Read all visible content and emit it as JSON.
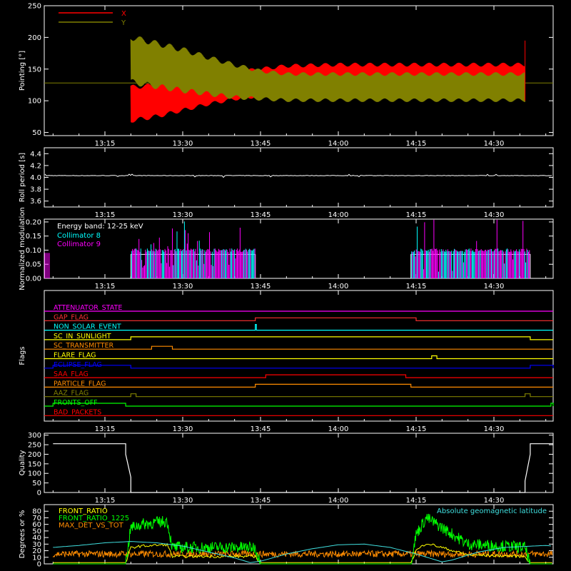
{
  "time_ticks": [
    "13:15",
    "13:30",
    "13:45",
    "14:00",
    "14:15",
    "14:30"
  ],
  "chart_data": [
    {
      "type": "line",
      "ylabel": "Pointing [°]",
      "ylim": [
        45,
        250
      ],
      "y_ticks": [
        50,
        100,
        150,
        200,
        250
      ],
      "legend": {
        "placement": "top-left"
      },
      "series": [
        {
          "name": "X",
          "color": "#ff0000",
          "envelope": [
            {
              "t": "13:20",
              "min": 65,
              "max": 125
            },
            {
              "t": "13:25",
              "min": 72,
              "max": 128
            },
            {
              "t": "13:30",
              "min": 82,
              "max": 133
            },
            {
              "t": "13:35",
              "min": 92,
              "max": 140
            },
            {
              "t": "13:40",
              "min": 100,
              "max": 148
            },
            {
              "t": "13:45",
              "min": 105,
              "max": 153
            },
            {
              "t": "13:50",
              "min": 108,
              "max": 158
            },
            {
              "t": "14:00",
              "min": 110,
              "max": 160
            },
            {
              "t": "14:20",
              "min": 110,
              "max": 160
            },
            {
              "t": "14:36",
              "min": 110,
              "max": 160
            }
          ]
        },
        {
          "name": "Y",
          "color": "#808000",
          "envelope": [
            {
              "t": "13:20",
              "min": 125,
              "max": 205
            },
            {
              "t": "13:25",
              "min": 118,
              "max": 195
            },
            {
              "t": "13:30",
              "min": 112,
              "max": 185
            },
            {
              "t": "13:35",
              "min": 107,
              "max": 172
            },
            {
              "t": "13:40",
              "min": 102,
              "max": 160
            },
            {
              "t": "13:45",
              "min": 100,
              "max": 150
            },
            {
              "t": "13:50",
              "min": 98,
              "max": 145
            },
            {
              "t": "14:00",
              "min": 98,
              "max": 145
            },
            {
              "t": "14:20",
              "min": 98,
              "max": 145
            },
            {
              "t": "14:36",
              "min": 98,
              "max": 145
            }
          ]
        }
      ],
      "baseline": 128
    },
    {
      "type": "line",
      "ylabel": "Roll period [s]",
      "ylim": [
        3.5,
        4.5
      ],
      "y_ticks": [
        3.6,
        3.8,
        4.0,
        4.2,
        4.4
      ],
      "series": [
        {
          "color": "#ffffff",
          "value": 4.03
        }
      ]
    },
    {
      "type": "bar",
      "ylabel": "Normalized modulation",
      "ylim": [
        0,
        0.21
      ],
      "y_ticks": [
        0.0,
        0.05,
        0.1,
        0.15,
        0.2
      ],
      "annotation": "Energy band: 12-25 keV",
      "series": [
        {
          "name": "Collimator 8",
          "color": "#00ffff"
        },
        {
          "name": "Collimator 9",
          "color": "#ff00ff"
        }
      ],
      "active_intervals": [
        [
          "13:20",
          "13:44"
        ],
        [
          "14:14",
          "14:37"
        ]
      ],
      "typical_value": 0.1
    },
    {
      "type": "line",
      "ylabel": "Flags",
      "series": [
        {
          "name": "ATTENUATOR_STATE",
          "color": "#ff00ff",
          "on": []
        },
        {
          "name": "GAP_FLAG",
          "color": "#ff3030",
          "on": [
            [
              "13:44",
              "14:15"
            ]
          ]
        },
        {
          "name": "NON_SOLAR_EVENT",
          "color": "#00ffff",
          "on": [
            [
              "13:44",
              "13:44"
            ]
          ]
        },
        {
          "name": "SC_IN_SUNLIGHT",
          "color": "#ffff00",
          "on": [
            [
              "13:20",
              "14:37"
            ]
          ]
        },
        {
          "name": "SC_TRANSMITTER",
          "color": "#ff8c00",
          "on": [
            [
              "13:24",
              "13:28"
            ]
          ]
        },
        {
          "name": "FLARE_FLAG",
          "color": "#ffff00",
          "on": [
            [
              "14:18",
              "14:19"
            ]
          ]
        },
        {
          "name": "ECLIPSE_FLAG",
          "color": "#0000ff",
          "on": [
            [
              "13:05",
              "13:20"
            ],
            [
              "14:37",
              "14:45"
            ]
          ]
        },
        {
          "name": "SAA_FLAG",
          "color": "#ff0000",
          "on": [
            [
              "13:46",
              "14:13"
            ]
          ]
        },
        {
          "name": "PARTICLE_FLAG",
          "color": "#ff8c00",
          "on": [
            [
              "13:44",
              "14:14"
            ]
          ]
        },
        {
          "name": "AAZ_FLAG",
          "color": "#808000",
          "on": [
            [
              "13:20",
              "13:21"
            ],
            [
              "14:36",
              "14:37"
            ]
          ]
        },
        {
          "name": "FRONTS_OFF",
          "color": "#00ff00",
          "on": [
            [
              "13:05",
              "13:19"
            ],
            [
              "14:41",
              "14:45"
            ]
          ]
        },
        {
          "name": "BAD_PACKETS",
          "color": "#ff0000",
          "on": []
        }
      ]
    },
    {
      "type": "line",
      "ylabel": "Quality",
      "ylim": [
        0,
        310
      ],
      "y_ticks": [
        0,
        50,
        100,
        150,
        200,
        250,
        300
      ],
      "series": [
        {
          "color": "#ffffff",
          "points": [
            [
              "13:05",
              255
            ],
            [
              "13:19",
              255
            ],
            [
              "13:19",
              200
            ],
            [
              "13:20",
              80
            ],
            [
              "13:20",
              0
            ],
            [
              "14:36",
              0
            ],
            [
              "14:36",
              60
            ],
            [
              "14:37",
              200
            ],
            [
              "14:37",
              255
            ],
            [
              "14:45",
              255
            ]
          ]
        }
      ]
    },
    {
      "type": "line",
      "ylabel": "Degrees or %",
      "ylim": [
        0,
        90
      ],
      "y_ticks": [
        0,
        10,
        20,
        30,
        40,
        50,
        60,
        70,
        80
      ],
      "series": [
        {
          "name": "FRONT_RATIO",
          "color": "#ffff00",
          "legend_position": "top-left"
        },
        {
          "name": "FRONT_RATIO_1225",
          "color": "#00ff00",
          "legend_position": "top-left"
        },
        {
          "name": "MAX_DET_VS_TOT",
          "color": "#ff8c00",
          "legend_position": "top-left"
        },
        {
          "name": "Absolute geomagnetic latitude",
          "color": "#40e0e0",
          "legend_position": "top-right"
        }
      ],
      "green_profile": [
        [
          "13:05",
          0
        ],
        [
          "13:19",
          0
        ],
        [
          "13:20",
          55
        ],
        [
          "13:22",
          60
        ],
        [
          "13:27",
          65
        ],
        [
          "13:28",
          25
        ],
        [
          "13:35",
          25
        ],
        [
          "13:44",
          25
        ],
        [
          "13:45",
          0
        ],
        [
          "14:14",
          0
        ],
        [
          "14:15",
          45
        ],
        [
          "14:17",
          70
        ],
        [
          "14:20",
          55
        ],
        [
          "14:25",
          30
        ],
        [
          "14:36",
          25
        ],
        [
          "14:37",
          0
        ],
        [
          "14:45",
          0
        ]
      ],
      "orange_level": 15,
      "geomagnetic_latitude": [
        [
          "13:05",
          25
        ],
        [
          "13:10",
          28
        ],
        [
          "13:15",
          32
        ],
        [
          "13:20",
          34
        ],
        [
          "13:25",
          32
        ],
        [
          "13:30",
          27
        ],
        [
          "13:35",
          18
        ],
        [
          "13:40",
          9
        ],
        [
          "13:43",
          2
        ],
        [
          "13:45",
          4
        ],
        [
          "13:50",
          15
        ],
        [
          "13:55",
          23
        ],
        [
          "14:00",
          29
        ],
        [
          "14:05",
          30
        ],
        [
          "14:10",
          25
        ],
        [
          "14:15",
          15
        ],
        [
          "14:20",
          3
        ],
        [
          "14:22",
          6
        ],
        [
          "14:27",
          18
        ],
        [
          "14:32",
          25
        ],
        [
          "14:40",
          28
        ],
        [
          "14:45",
          24
        ]
      ]
    }
  ]
}
